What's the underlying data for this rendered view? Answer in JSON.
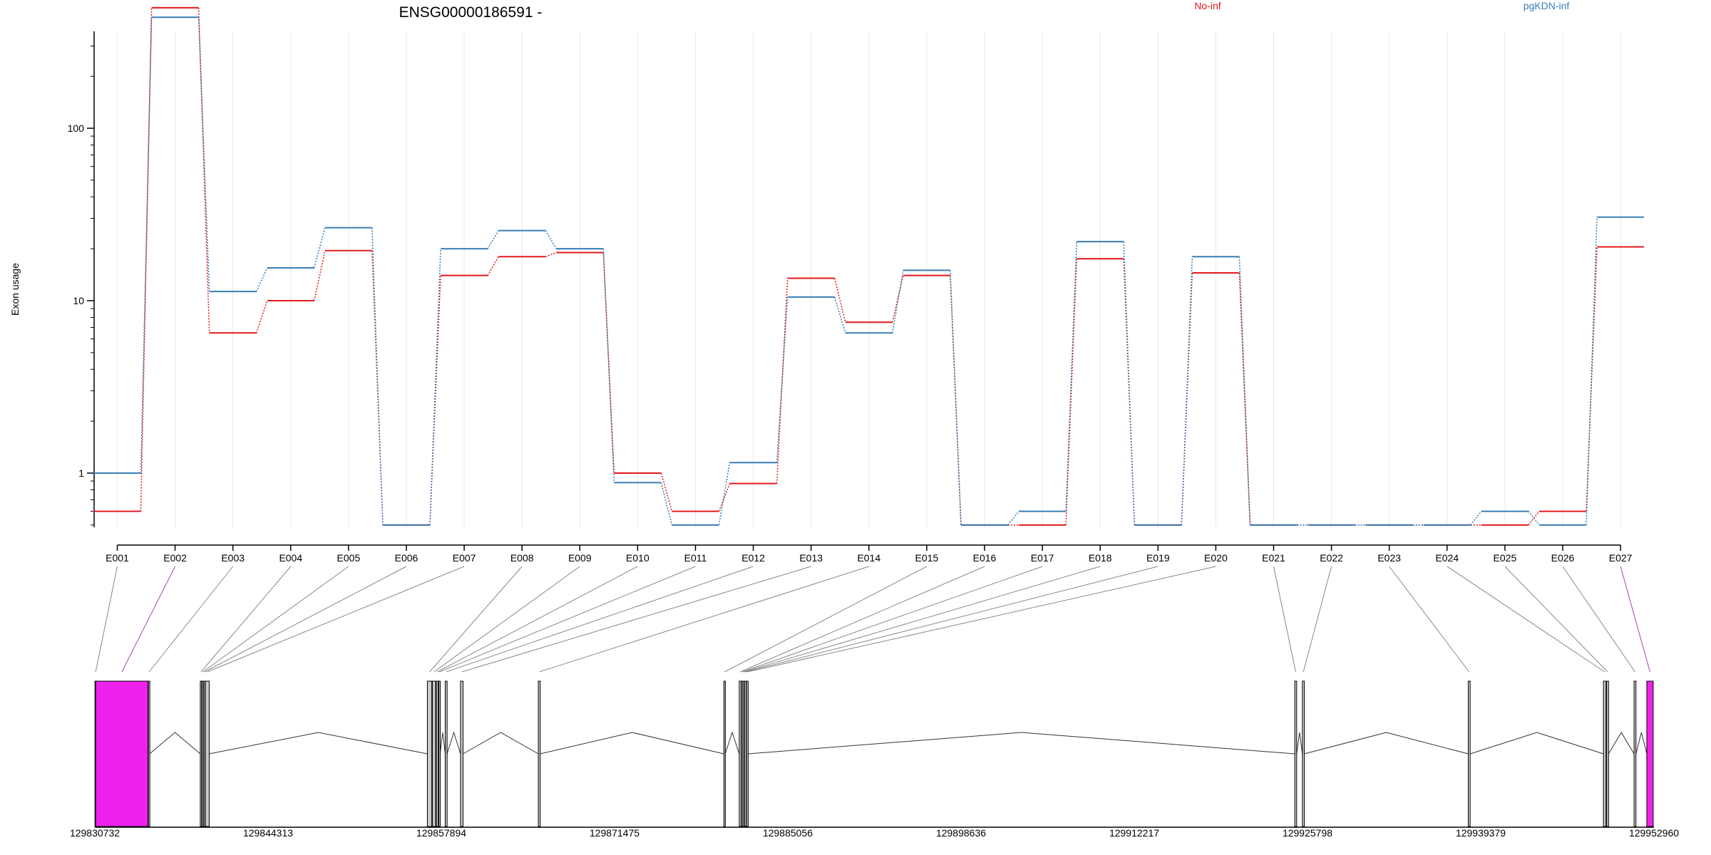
{
  "chart_data": {
    "type": "line",
    "title": "ENSG00000186591 -",
    "ylabel": "Exon usage",
    "xlabel": "",
    "y_scale": "log",
    "yticks": [
      1,
      10,
      100
    ],
    "ylim": [
      0.5,
      800
    ],
    "grid": "vertical lines at each exon",
    "legend_placement": "top",
    "series": [
      {
        "name": "No-inf",
        "color": "#e41a1c",
        "values": [
          0.6,
          500,
          6.5,
          10,
          19.5,
          0.5,
          14,
          18,
          19,
          1.0,
          0.6,
          0.87,
          13.5,
          7.5,
          14,
          0.5,
          0.5,
          17.5,
          0.5,
          14.5,
          0.5,
          0.5,
          0.5,
          0.5,
          0.5,
          0.6,
          20.5
        ]
      },
      {
        "name": "pgKDN-inf",
        "color": "#377eb8",
        "values": [
          1.0,
          440,
          11.3,
          15.5,
          26.5,
          0.5,
          20,
          25.5,
          20,
          0.88,
          0.5,
          1.15,
          10.5,
          6.5,
          15,
          0.5,
          0.6,
          22,
          0.5,
          18,
          0.5,
          0.5,
          0.5,
          0.5,
          0.6,
          0.5,
          30.5
        ]
      }
    ],
    "categories": [
      "E001",
      "E002",
      "E003",
      "E004",
      "E005",
      "E006",
      "E007",
      "E008",
      "E009",
      "E010",
      "E011",
      "E012",
      "E013",
      "E014",
      "E015",
      "E016",
      "E017",
      "E018",
      "E019",
      "E020",
      "E021",
      "E022",
      "E023",
      "E024",
      "E025",
      "E026",
      "E027"
    ],
    "highlighted_exons": [
      "E002",
      "E027"
    ],
    "gene_model": {
      "genomic_range": [
        129830732,
        129952960
      ],
      "tick_labels": [
        "129830732",
        "129844313",
        "129857894",
        "129871475",
        "129885056",
        "129898636",
        "129912217",
        "129925798",
        "129939379",
        "129952960"
      ],
      "exons": [
        {
          "id": "E001",
          "start": 129830740,
          "end": 129830790
        },
        {
          "id": "E002",
          "start": 129830800,
          "end": 129834900
        },
        {
          "id": "E003",
          "start": 129834930,
          "end": 129835030
        },
        {
          "id": "E004",
          "start": 129839000,
          "end": 129839100
        },
        {
          "id": "E005",
          "start": 129839150,
          "end": 129839250
        },
        {
          "id": "E006",
          "start": 129839280,
          "end": 129839350
        },
        {
          "id": "E007",
          "start": 129839400,
          "end": 129839700
        },
        {
          "id": "E008",
          "start": 129856800,
          "end": 129857150
        },
        {
          "id": "E009",
          "start": 129857200,
          "end": 129857450
        },
        {
          "id": "E010",
          "start": 129857500,
          "end": 129857650
        },
        {
          "id": "E011",
          "start": 129857700,
          "end": 129857800
        },
        {
          "id": "E012",
          "start": 129858200,
          "end": 129858350
        },
        {
          "id": "E013",
          "start": 129859400,
          "end": 129859600
        },
        {
          "id": "E014",
          "start": 129865500,
          "end": 129865650
        },
        {
          "id": "E015",
          "start": 129880050,
          "end": 129880150
        },
        {
          "id": "E016",
          "start": 129881250,
          "end": 129881400
        },
        {
          "id": "E017",
          "start": 129881420,
          "end": 129881520
        },
        {
          "id": "E018",
          "start": 129881540,
          "end": 129881650
        },
        {
          "id": "E019",
          "start": 129881670,
          "end": 129881800
        },
        {
          "id": "E020",
          "start": 129881820,
          "end": 129881950
        },
        {
          "id": "E021",
          "start": 129924800,
          "end": 129924950
        },
        {
          "id": "E022",
          "start": 129925400,
          "end": 129925550
        },
        {
          "id": "E023",
          "start": 129938400,
          "end": 129938550
        },
        {
          "id": "E024",
          "start": 129949000,
          "end": 129949200
        },
        {
          "id": "E025",
          "start": 129949250,
          "end": 129949400
        },
        {
          "id": "E026",
          "start": 129951400,
          "end": 129951550
        },
        {
          "id": "E027",
          "start": 129952400,
          "end": 129952900
        }
      ]
    }
  }
}
